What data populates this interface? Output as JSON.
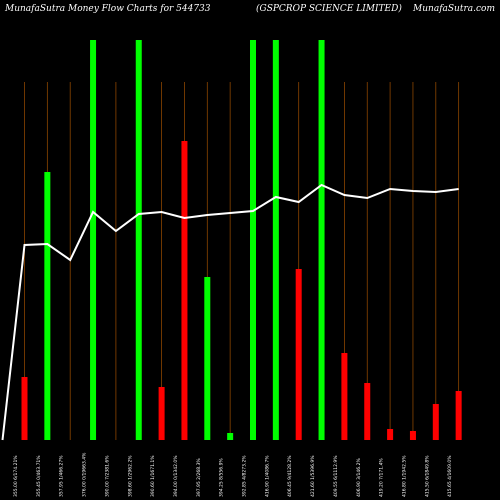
{
  "header": {
    "left": "MunafaSutra Money Flow Charts for 544733",
    "middle": "(GSPCROP SCIENCE LIMITED)",
    "right": "MunafaSutra.com"
  },
  "colors": {
    "background": "#000000",
    "up": "#00ff00",
    "down": "#ff0000",
    "line": "#ffffff",
    "grid": "#8b4500"
  },
  "chart_data": {
    "type": "bar",
    "title": "",
    "categories": [
      "355.00 6/174.21%",
      "355.45 0/463.71%",
      "357.95 1/466.27%",
      "376.00 0/19663.4%",
      "390.00 7/2381.6%",
      "398.60 1/2962.2%",
      "390.60 1/1671.1%",
      "394.00 0/1342.0%",
      "397.95 2/268.3%",
      "394.25 8/556.9%",
      "392.85 4/8273.2%",
      "416.90 1/4086.7%",
      "406.45 9/4128.2%",
      "421.60 1/5396.9%",
      "409.55 6/1112.9%",
      "406.90 3/146.2%",
      "419.20 7/171.4%",
      "416.80 1/1942.5%",
      "415.50 6/1849.8%",
      "415.65 4/1609.0%"
    ],
    "series": [
      {
        "values": [
          63,
          0,
          0,
          0,
          0,
          0,
          53,
          299,
          0,
          0,
          0,
          0,
          171,
          0,
          87,
          57,
          11,
          9,
          36,
          49
        ],
        "color": "#ff0000"
      },
      {
        "values": [
          0,
          268,
          0,
          400,
          0,
          400,
          0,
          0,
          163,
          7,
          400,
          400,
          0,
          400,
          0,
          0,
          0,
          0,
          0,
          0
        ],
        "color": "#00ff00"
      },
      {
        "values": [
          195,
          196,
          180,
          228,
          209,
          226,
          228,
          222,
          225,
          227,
          229,
          243,
          238,
          255,
          245,
          242,
          251,
          249,
          248,
          251
        ],
        "type": "line",
        "color": "#ffffff"
      }
    ],
    "ylim": [
      0,
      400
    ],
    "grid": true
  }
}
